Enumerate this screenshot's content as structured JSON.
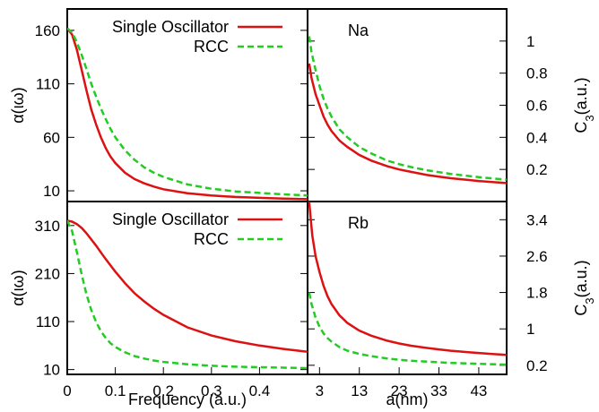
{
  "chart_data": [
    {
      "type": "line",
      "panel": "polarizability-top",
      "ylabel": "α(ιω)",
      "xlim": [
        0,
        0.5
      ],
      "ylim": [
        0,
        180
      ],
      "yticks": [
        10,
        60,
        110,
        160
      ],
      "legend_placement": "top-right",
      "series": [
        {
          "name": "Single Oscillator",
          "color": "#dd1111",
          "dash": "solid",
          "x": [
            0,
            0.01,
            0.02,
            0.03,
            0.04,
            0.05,
            0.06,
            0.07,
            0.08,
            0.09,
            0.1,
            0.12,
            0.14,
            0.16,
            0.18,
            0.2,
            0.25,
            0.3,
            0.35,
            0.4,
            0.45,
            0.5
          ],
          "y": [
            162,
            156,
            142,
            123,
            104,
            86,
            72,
            60,
            50,
            42,
            36,
            27,
            21,
            17,
            14,
            11.5,
            7.8,
            5.6,
            4.3,
            3.4,
            2.7,
            2.2
          ]
        },
        {
          "name": "RCC",
          "color": "#22cc22",
          "dash": "dashed",
          "x": [
            0,
            0.01,
            0.02,
            0.03,
            0.04,
            0.05,
            0.06,
            0.07,
            0.08,
            0.09,
            0.1,
            0.12,
            0.14,
            0.16,
            0.18,
            0.2,
            0.25,
            0.3,
            0.35,
            0.4,
            0.45,
            0.5
          ],
          "y": [
            162,
            158,
            149,
            137,
            124,
            110,
            98,
            87,
            77,
            68,
            60,
            48,
            39,
            32,
            27,
            23,
            16,
            12,
            9.5,
            8,
            6.7,
            5.7
          ]
        }
      ]
    },
    {
      "type": "line",
      "panel": "c3-top",
      "ylabel": "C3(a.u.)",
      "annotation": "Na",
      "xlim": [
        0,
        50
      ],
      "ylim": [
        0,
        1.2
      ],
      "yticks": [
        0.2,
        0.4,
        0.6,
        0.8,
        1
      ],
      "series": [
        {
          "name": "Single Oscillator",
          "color": "#dd1111",
          "dash": "solid",
          "x": [
            0.4,
            1,
            2,
            3,
            4,
            5,
            6,
            8,
            10,
            13,
            16,
            20,
            23,
            26,
            30,
            33,
            36,
            40,
            43,
            46,
            50
          ],
          "y": [
            0.86,
            0.77,
            0.67,
            0.6,
            0.53,
            0.48,
            0.44,
            0.38,
            0.34,
            0.29,
            0.255,
            0.22,
            0.2,
            0.185,
            0.165,
            0.155,
            0.145,
            0.135,
            0.128,
            0.122,
            0.115
          ]
        },
        {
          "name": "RCC",
          "color": "#22cc22",
          "dash": "dashed",
          "x": [
            0.4,
            1,
            2,
            3,
            4,
            5,
            6,
            8,
            10,
            13,
            16,
            20,
            23,
            26,
            30,
            33,
            36,
            40,
            43,
            46,
            50
          ],
          "y": [
            1.03,
            0.93,
            0.82,
            0.72,
            0.64,
            0.58,
            0.53,
            0.45,
            0.4,
            0.34,
            0.3,
            0.255,
            0.233,
            0.215,
            0.195,
            0.183,
            0.172,
            0.16,
            0.152,
            0.145,
            0.136
          ]
        }
      ]
    },
    {
      "type": "line",
      "panel": "polarizability-bottom",
      "ylabel": "α(ιω)",
      "xlabel": "Frequency (a.u.)",
      "xlim": [
        0,
        0.5
      ],
      "ylim": [
        0,
        360
      ],
      "xticks": [
        0,
        0.1,
        0.2,
        0.3,
        0.4
      ],
      "yticks": [
        10,
        110,
        210,
        310
      ],
      "legend_placement": "top-right",
      "series": [
        {
          "name": "Single Oscillator",
          "color": "#dd1111",
          "dash": "solid",
          "x": [
            0,
            0.01,
            0.02,
            0.03,
            0.04,
            0.05,
            0.06,
            0.07,
            0.08,
            0.09,
            0.1,
            0.12,
            0.14,
            0.16,
            0.18,
            0.2,
            0.25,
            0.3,
            0.35,
            0.4,
            0.45,
            0.5
          ],
          "y": [
            320,
            318,
            313,
            305,
            294,
            281,
            268,
            254,
            240,
            227,
            214,
            190,
            169,
            152,
            137,
            124,
            98,
            81,
            69,
            60,
            53,
            47
          ]
        },
        {
          "name": "RCC",
          "color": "#22cc22",
          "dash": "dashed",
          "x": [
            0,
            0.01,
            0.02,
            0.03,
            0.04,
            0.05,
            0.06,
            0.07,
            0.08,
            0.09,
            0.1,
            0.12,
            0.14,
            0.16,
            0.18,
            0.2,
            0.25,
            0.3,
            0.35,
            0.4,
            0.45,
            0.5
          ],
          "y": [
            320,
            298,
            255,
            208,
            167,
            134,
            109,
            90,
            76,
            65,
            57,
            46,
            38,
            33,
            29,
            26,
            21,
            18,
            16,
            15,
            14,
            13
          ]
        }
      ]
    },
    {
      "type": "line",
      "panel": "c3-bottom",
      "ylabel": "C3(a.u.)",
      "xlabel": "a(nm)",
      "annotation": "Rb",
      "xlim": [
        0,
        50
      ],
      "ylim": [
        0,
        3.8
      ],
      "xticks": [
        3,
        13,
        23,
        33,
        43
      ],
      "yticks": [
        0.2,
        1,
        1.8,
        2.6,
        3.4
      ],
      "series": [
        {
          "name": "Single Oscillator",
          "color": "#dd1111",
          "dash": "solid",
          "x": [
            0.4,
            0.8,
            1.2,
            2,
            3,
            4,
            5,
            6,
            8,
            10,
            13,
            16,
            20,
            23,
            26,
            30,
            33,
            36,
            40,
            43,
            46,
            50
          ],
          "y": [
            3.8,
            3.4,
            3.05,
            2.6,
            2.25,
            1.95,
            1.72,
            1.55,
            1.3,
            1.13,
            0.96,
            0.85,
            0.74,
            0.68,
            0.63,
            0.58,
            0.55,
            0.52,
            0.49,
            0.47,
            0.45,
            0.43
          ]
        },
        {
          "name": "RCC",
          "color": "#22cc22",
          "dash": "dashed",
          "x": [
            0.4,
            1,
            2,
            3,
            4,
            5,
            6,
            8,
            10,
            13,
            16,
            20,
            23,
            26,
            30,
            33,
            36,
            40,
            43,
            46,
            50
          ],
          "y": [
            1.8,
            1.55,
            1.25,
            1.05,
            0.9,
            0.8,
            0.72,
            0.6,
            0.52,
            0.45,
            0.4,
            0.35,
            0.32,
            0.3,
            0.28,
            0.265,
            0.252,
            0.24,
            0.232,
            0.225,
            0.215
          ]
        }
      ]
    }
  ]
}
